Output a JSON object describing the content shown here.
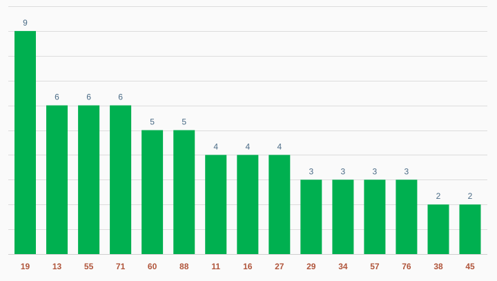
{
  "colors": {
    "bar": "#00b050",
    "value_label": "#4a6b86",
    "category_label": "#b0553b",
    "grid": "#dcdcdc",
    "background": "#fafafa"
  },
  "chart_data": {
    "type": "bar",
    "categories": [
      "19",
      "13",
      "55",
      "71",
      "60",
      "88",
      "11",
      "16",
      "27",
      "29",
      "34",
      "57",
      "76",
      "38",
      "45"
    ],
    "values": [
      9,
      6,
      6,
      6,
      5,
      5,
      4,
      4,
      4,
      3,
      3,
      3,
      3,
      2,
      2
    ],
    "title": "",
    "xlabel": "",
    "ylabel": "",
    "ylim": [
      0,
      10
    ],
    "grid": true,
    "data_labels": true,
    "legend": "none"
  }
}
